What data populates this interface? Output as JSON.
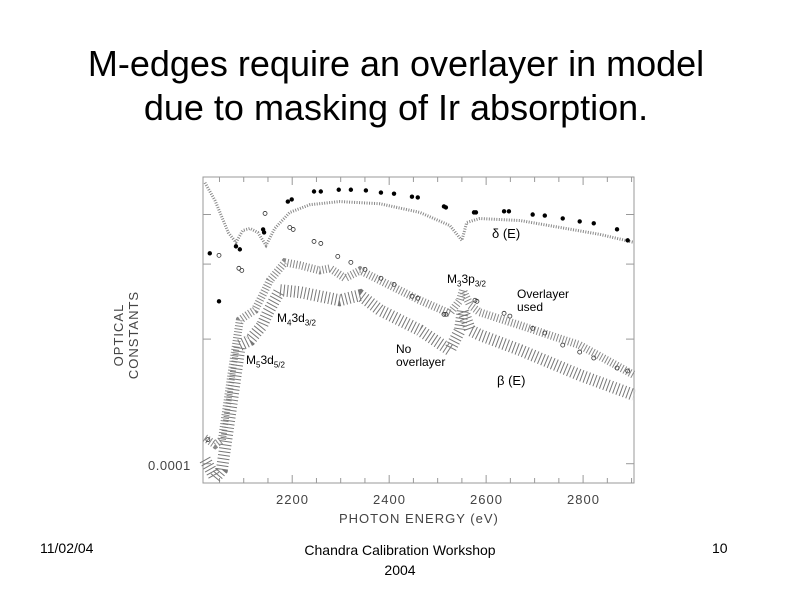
{
  "slide": {
    "title_line1": "M-edges require an overlayer in model",
    "title_line2": "due to masking of Ir absorption.",
    "footer_left": "11/02/04",
    "footer_center_line1": "Chandra Calibration Workshop",
    "footer_center_line2": "2004",
    "footer_right": "10"
  },
  "chart_data": {
    "type": "scatter",
    "xlabel": "PHOTON ENERGY (eV)",
    "ylabel": "OPTICAL CONSTANTS",
    "xlim": [
      2016,
      2905
    ],
    "ylim": [
      7e-05,
      0.02
    ],
    "yscale": "log",
    "xticks": [
      2200,
      2400,
      2600,
      2800
    ],
    "xtick_labels": [
      "2200",
      "2400",
      "2600",
      "2800"
    ],
    "ytick_labels": [
      "0.0001"
    ],
    "annotations": {
      "delta": "δ (E)",
      "beta": "β (E)",
      "m5_main": "M",
      "m5_sub1": "5",
      "m5_rest": "3d",
      "m5_sub2": "5/2",
      "m4_main": "M",
      "m4_sub1": "4",
      "m4_rest": "3d",
      "m4_sub2": "3/2",
      "m3_main": "M",
      "m3_sub1": "3",
      "m3_rest": "3p",
      "m3_sub2": "3/2",
      "overlayer": "Overlayer used",
      "no_overlayer_1": "No",
      "no_overlayer_2": "overlayer"
    },
    "delta_curve": {
      "x": [
        2020,
        2041,
        2068,
        2084,
        2098,
        2113,
        2129,
        2146,
        2164,
        2195,
        2237,
        2298,
        2381,
        2463,
        2525,
        2550,
        2560,
        2587,
        2670,
        2835,
        2905
      ],
      "y": [
        0.018,
        0.0129,
        0.00718,
        0.00597,
        0.00745,
        0.00773,
        0.00718,
        0.00565,
        0.00773,
        0.0104,
        0.012,
        0.0127,
        0.0122,
        0.0104,
        0.00817,
        0.00619,
        0.00863,
        0.00929,
        0.00895,
        0.00692,
        0.00597
      ]
    },
    "beta_overlayer": {
      "x": [
        2020,
        2041,
        2055,
        2076,
        2092,
        2107,
        2123,
        2144,
        2154,
        2185,
        2216,
        2257,
        2278,
        2309,
        2340,
        2381,
        2463,
        2525,
        2546,
        2552,
        2567,
        2587,
        2670,
        2793,
        2905
      ],
      "y": [
        0.000161,
        0.000142,
        0.000156,
        0.000565,
        0.00142,
        0.00156,
        0.00171,
        0.00247,
        0.00296,
        0.00413,
        0.00391,
        0.00356,
        0.0037,
        0.00308,
        0.00356,
        0.00296,
        0.00205,
        0.00161,
        0.00205,
        0.00247,
        0.00187,
        0.00164,
        0.00129,
        0.000895,
        0.000515
      ]
    },
    "beta_no_overlayer": {
      "x": [
        2020,
        2041,
        2055,
        2076,
        2092,
        2113,
        2138,
        2150,
        2175,
        2216,
        2298,
        2340,
        2381,
        2463,
        2525,
        2546,
        2552,
        2567,
        2587,
        2670,
        2793,
        2905
      ],
      "y": [
        0.000108,
        7.7e-05,
        8.95e-05,
        0.000325,
        0.000895,
        0.00098,
        0.00129,
        0.00164,
        0.00247,
        0.00238,
        0.00205,
        0.00225,
        0.00171,
        0.00118,
        0.000817,
        0.00118,
        0.00171,
        0.00118,
        0.00108,
        0.000817,
        0.000515,
        0.000356
      ]
    },
    "measured_filled": {
      "x": [
        2030,
        2049,
        2084,
        2092,
        2140,
        2142,
        2191,
        2199,
        2245,
        2259,
        2296,
        2321,
        2352,
        2383,
        2410,
        2447,
        2459,
        2513,
        2517,
        2575,
        2579,
        2637,
        2647,
        2696,
        2721,
        2758,
        2793,
        2822,
        2870,
        2892
      ],
      "y": [
        0.00488,
        0.00201,
        0.00555,
        0.00525,
        0.00759,
        0.00718,
        0.0127,
        0.0132,
        0.0153,
        0.0153,
        0.0158,
        0.0158,
        0.0156,
        0.015,
        0.0147,
        0.0139,
        0.0137,
        0.0116,
        0.0114,
        0.0104,
        0.0104,
        0.0106,
        0.0106,
        0.01,
        0.0098,
        0.0093,
        0.0088,
        0.0085,
        0.0076,
        0.0062
      ]
    },
    "measured_open": {
      "x": [
        2026,
        2049,
        2090,
        2096,
        2144,
        2195,
        2202,
        2245,
        2259,
        2294,
        2321,
        2350,
        2383,
        2410,
        2447,
        2459,
        2513,
        2517,
        2577,
        2581,
        2637,
        2649,
        2696,
        2721,
        2758,
        2793,
        2822,
        2870,
        2892
      ],
      "y": [
        0.000156,
        0.0047,
        0.0037,
        0.00356,
        0.0102,
        0.00787,
        0.00759,
        0.00608,
        0.00586,
        0.00461,
        0.00413,
        0.00363,
        0.00308,
        0.00275,
        0.00221,
        0.00213,
        0.00158,
        0.00158,
        0.00205,
        0.00201,
        0.00161,
        0.00153,
        0.00122,
        0.00112,
        0.000895,
        0.000787,
        0.000705,
        0.000586,
        0.000555
      ]
    },
    "colors": {
      "frame": "#999999",
      "band_overlayer": "#888888",
      "band_no_overlayer": "#777777",
      "delta": "#888888",
      "markers": "#000000"
    }
  }
}
